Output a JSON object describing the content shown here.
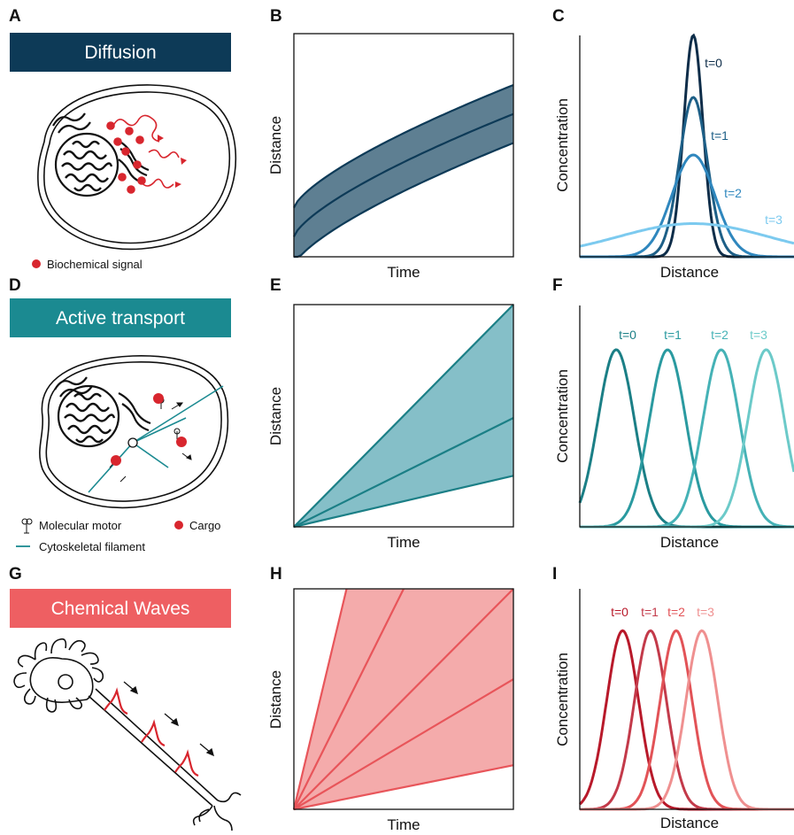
{
  "panels": [
    {
      "letter": "A",
      "banner": "Diffusion",
      "banner_color": "#0d3a57",
      "legend": [
        "Biochemical signal"
      ]
    },
    {
      "letter": "D",
      "banner": "Active transport",
      "banner_color": "#1b8a91",
      "legend": [
        "Molecular motor",
        "Cargo",
        "Cytoskeletal filament"
      ]
    },
    {
      "letter": "G",
      "banner": "Chemical Waves",
      "banner_color": "#ee5f62",
      "legend": []
    }
  ],
  "chart_data": [
    {
      "panel": "B",
      "type": "area",
      "xlabel": "Time",
      "ylabel": "Distance",
      "shape": "sqrt",
      "color": "#0d3a57",
      "fill": "#5e7f92"
    },
    {
      "panel": "C",
      "type": "line",
      "xlabel": "Distance",
      "ylabel": "Concentration",
      "series": [
        {
          "name": "t=0",
          "color": "#0e2d49",
          "sigma": 0.045,
          "peak": 1.0
        },
        {
          "name": "t=1",
          "color": "#1d5f87",
          "sigma": 0.065,
          "peak": 0.72
        },
        {
          "name": "t=2",
          "color": "#2f87be",
          "sigma": 0.1,
          "peak": 0.46
        },
        {
          "name": "t=3",
          "color": "#7ccaef",
          "sigma": 0.35,
          "peak": 0.15
        }
      ]
    },
    {
      "panel": "E",
      "type": "area",
      "xlabel": "Time",
      "ylabel": "Distance",
      "shape": "linear",
      "color": "#1b7f86",
      "fill": "#85bfc8"
    },
    {
      "panel": "F",
      "type": "line",
      "xlabel": "Distance",
      "ylabel": "Concentration",
      "series": [
        {
          "name": "t=0",
          "color": "#1b7f86",
          "mu": 0.17
        },
        {
          "name": "t=1",
          "color": "#2a9aa0",
          "mu": 0.41
        },
        {
          "name": "t=2",
          "color": "#45b2b6",
          "mu": 0.66
        },
        {
          "name": "t=3",
          "color": "#6ccac9",
          "mu": 0.87
        }
      ]
    },
    {
      "panel": "H",
      "type": "area",
      "xlabel": "Time",
      "ylabel": "Distance",
      "shape": "fan",
      "color": "#e8555a",
      "fill": "#f4abab"
    },
    {
      "panel": "I",
      "type": "line",
      "xlabel": "Distance",
      "ylabel": "Concentration",
      "series": [
        {
          "name": "t=0",
          "color": "#b8192a",
          "mu": 0.2
        },
        {
          "name": "t=1",
          "color": "#c33a4a",
          "mu": 0.33
        },
        {
          "name": "t=2",
          "color": "#e25357",
          "mu": 0.45
        },
        {
          "name": "t=3",
          "color": "#ef9090",
          "mu": 0.57
        }
      ]
    }
  ]
}
